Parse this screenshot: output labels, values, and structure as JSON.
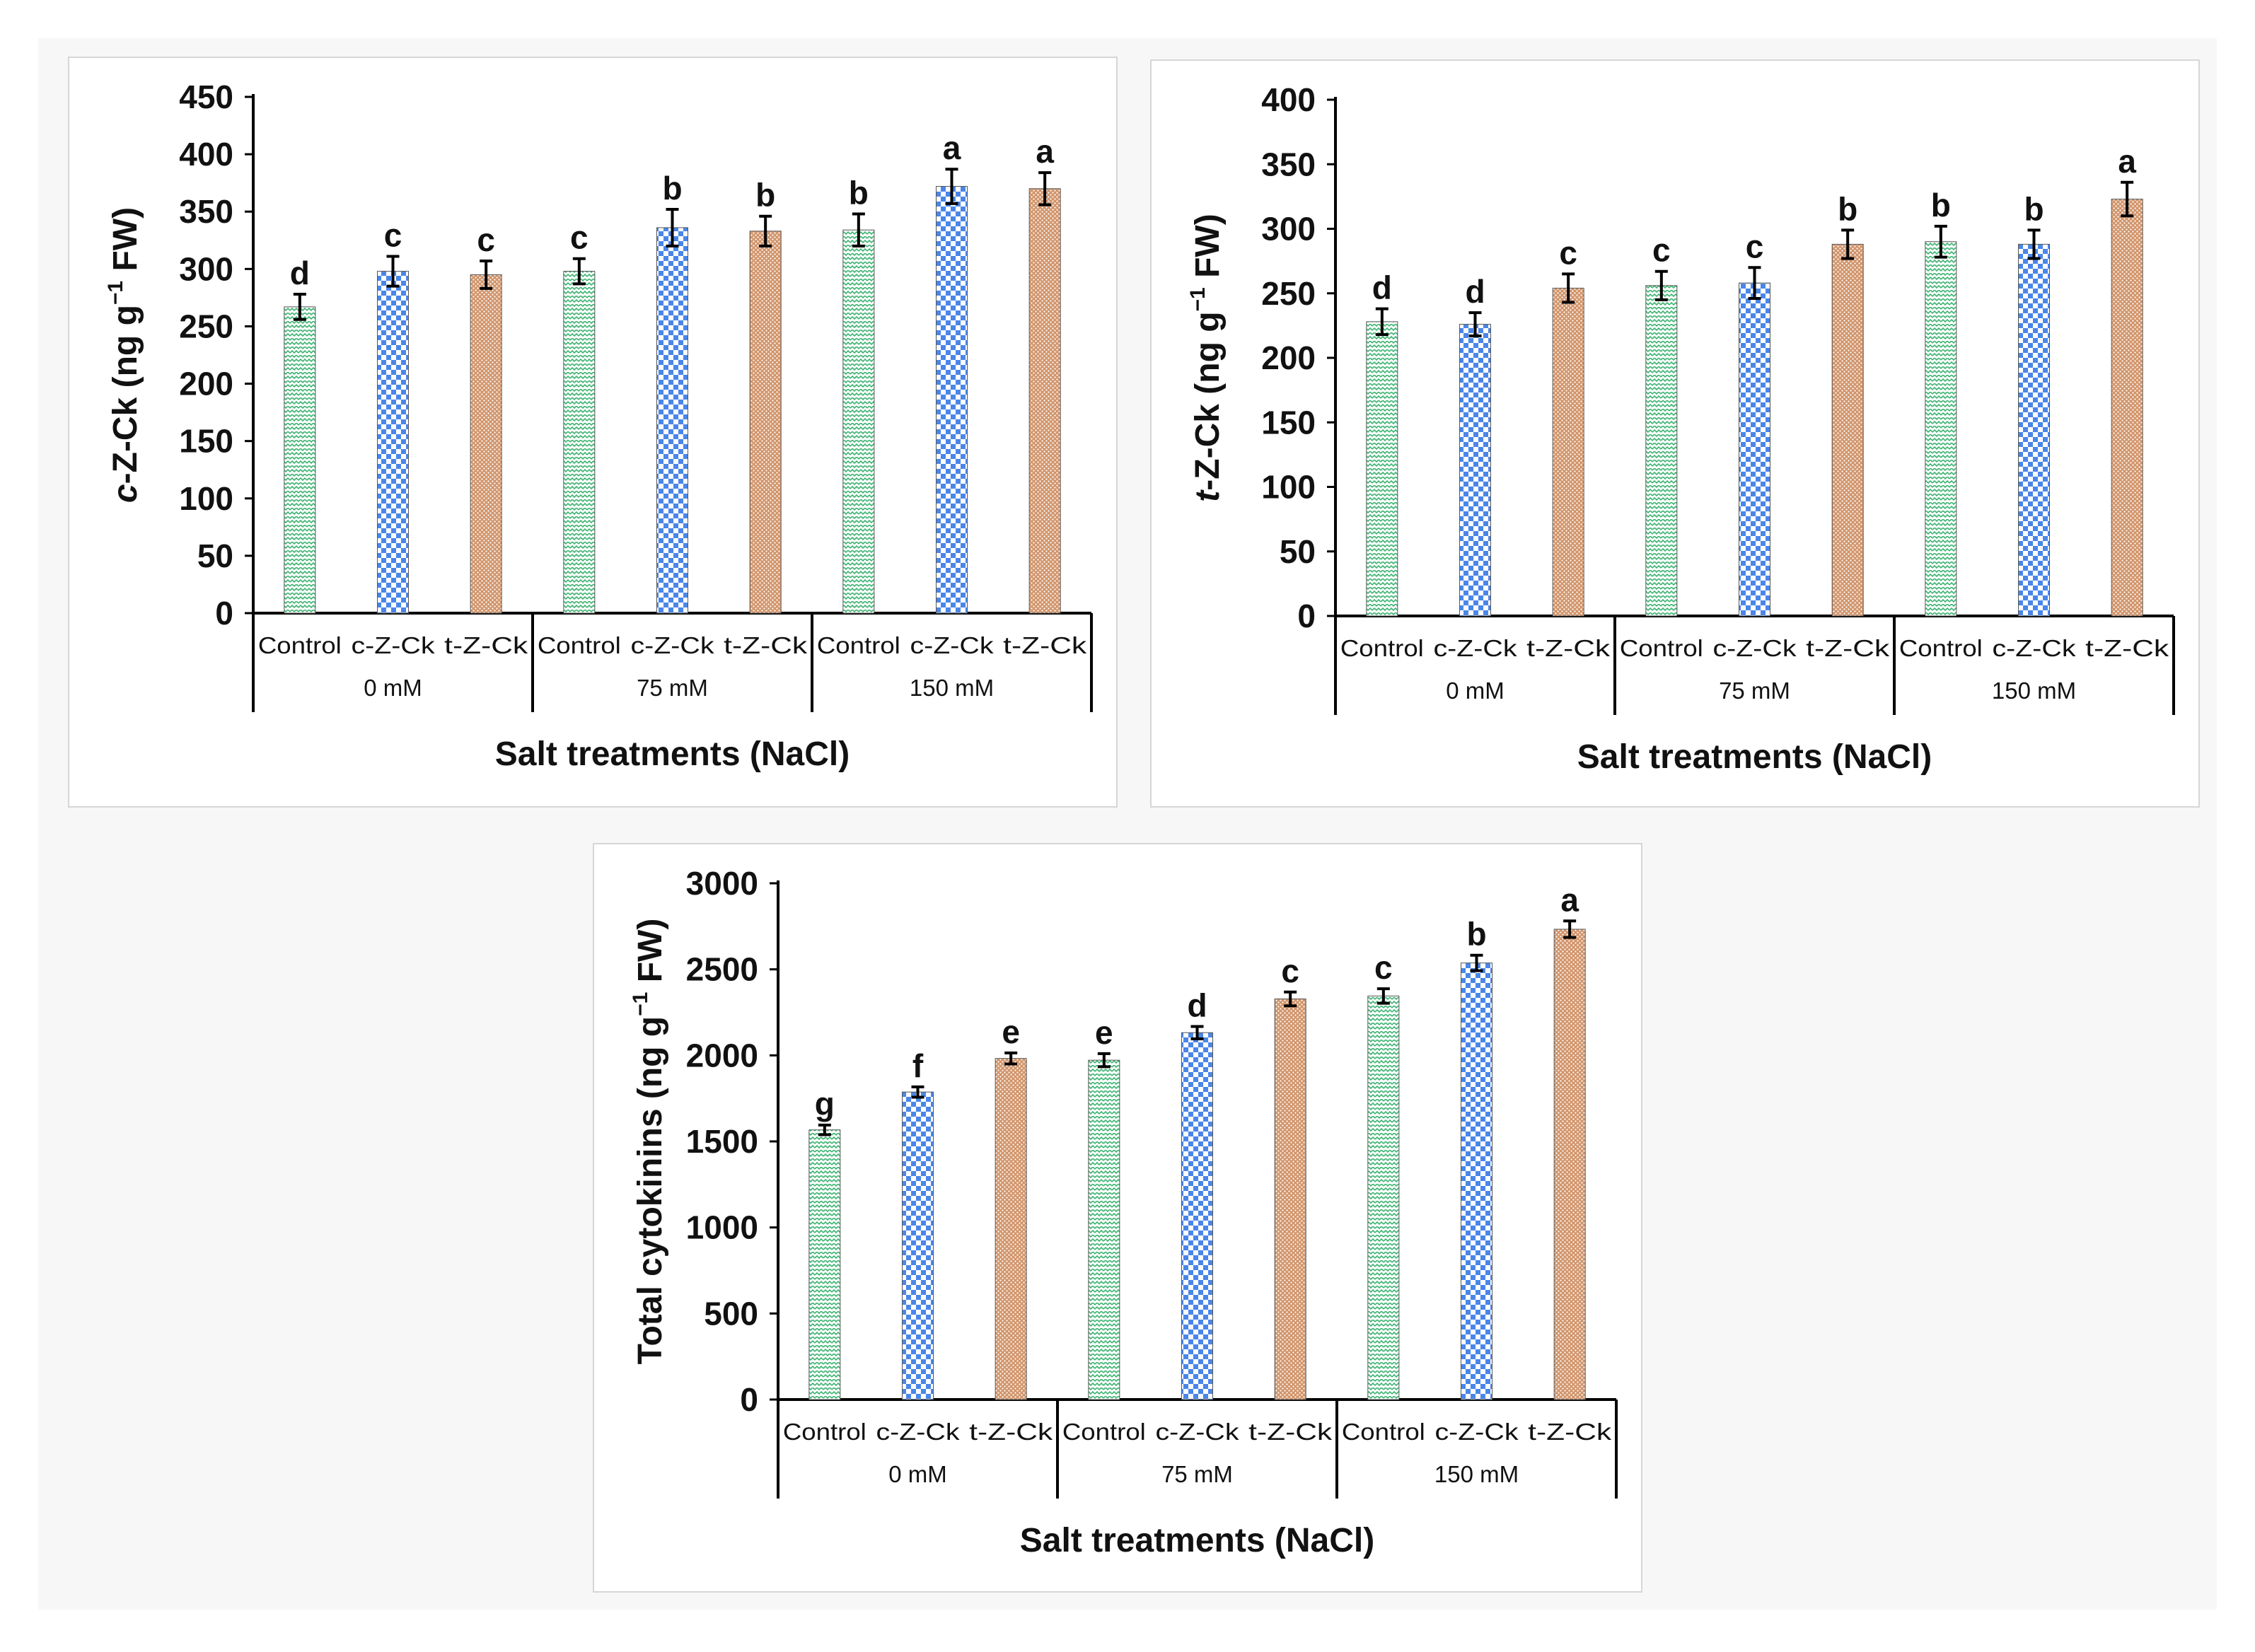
{
  "chart_data": [
    {
      "type": "bar",
      "ylabel_main": "c",
      "ylabel_rest": "-Z-Ck  (ng g",
      "ylabel_sup": "−1",
      "ylabel_end": " FW)",
      "xlabel": "Salt treatments (NaCl)",
      "ylim": [
        0,
        450
      ],
      "yticks": [
        0,
        50,
        100,
        150,
        200,
        250,
        300,
        350,
        400,
        450
      ],
      "categories": [
        "Control",
        "c-Z-Ck",
        "t-Z-Ck",
        "Control",
        "c-Z-Ck",
        "t-Z-Ck",
        "Control",
        "c-Z-Ck",
        "t-Z-Ck"
      ],
      "groups": [
        "0 mM",
        "75 mM",
        "150 mM"
      ],
      "values": [
        267,
        298,
        295,
        298,
        336,
        333,
        334,
        372,
        370
      ],
      "errors": [
        11,
        13,
        12,
        11,
        16,
        13,
        14,
        15,
        14
      ],
      "letters": [
        "d",
        "c",
        "c",
        "c",
        "b",
        "b",
        "b",
        "a",
        "a"
      ]
    },
    {
      "type": "bar",
      "ylabel_main": "t",
      "ylabel_rest": "-Z-Ck  (ng g",
      "ylabel_sup": "−1",
      "ylabel_end": " FW)",
      "xlabel": "Salt treatments (NaCl)",
      "ylim": [
        0,
        400
      ],
      "yticks": [
        0,
        50,
        100,
        150,
        200,
        250,
        300,
        350,
        400
      ],
      "categories": [
        "Control",
        "c-Z-Ck",
        "t-Z-Ck",
        "Control",
        "c-Z-Ck",
        "t-Z-Ck",
        "Control",
        "c-Z-Ck",
        "t-Z-Ck"
      ],
      "groups": [
        "0 mM",
        "75 mM",
        "150 mM"
      ],
      "values": [
        228,
        226,
        254,
        256,
        258,
        288,
        290,
        288,
        323
      ],
      "errors": [
        10,
        9,
        11,
        11,
        12,
        11,
        12,
        11,
        13
      ],
      "letters": [
        "d",
        "d",
        "c",
        "c",
        "c",
        "b",
        "b",
        "b",
        "a"
      ]
    },
    {
      "type": "bar",
      "ylabel_main": "",
      "ylabel_rest": "Total cytokinins (ng g",
      "ylabel_sup": "−1",
      "ylabel_end": " FW)",
      "xlabel": "Salt treatments (NaCl)",
      "ylim": [
        0,
        3000
      ],
      "yticks": [
        0,
        500,
        1000,
        1500,
        2000,
        2500,
        3000
      ],
      "categories": [
        "Control",
        "c-Z-Ck",
        "t-Z-Ck",
        "Control",
        "c-Z-Ck",
        "t-Z-Ck",
        "Control",
        "c-Z-Ck",
        "t-Z-Ck"
      ],
      "groups": [
        "0 mM",
        "75 mM",
        "150 mM"
      ],
      "values": [
        1567,
        1787,
        1982,
        1972,
        2132,
        2328,
        2345,
        2537,
        2733
      ],
      "errors": [
        28,
        30,
        32,
        38,
        36,
        40,
        42,
        45,
        48
      ],
      "letters": [
        "g",
        "f",
        "e",
        "e",
        "d",
        "c",
        "c",
        "b",
        "a"
      ]
    }
  ],
  "colors": {
    "control": "#3cb371",
    "c-Z-Ck": "#4a86e8",
    "t-Z-Ck": "#d2956b"
  }
}
